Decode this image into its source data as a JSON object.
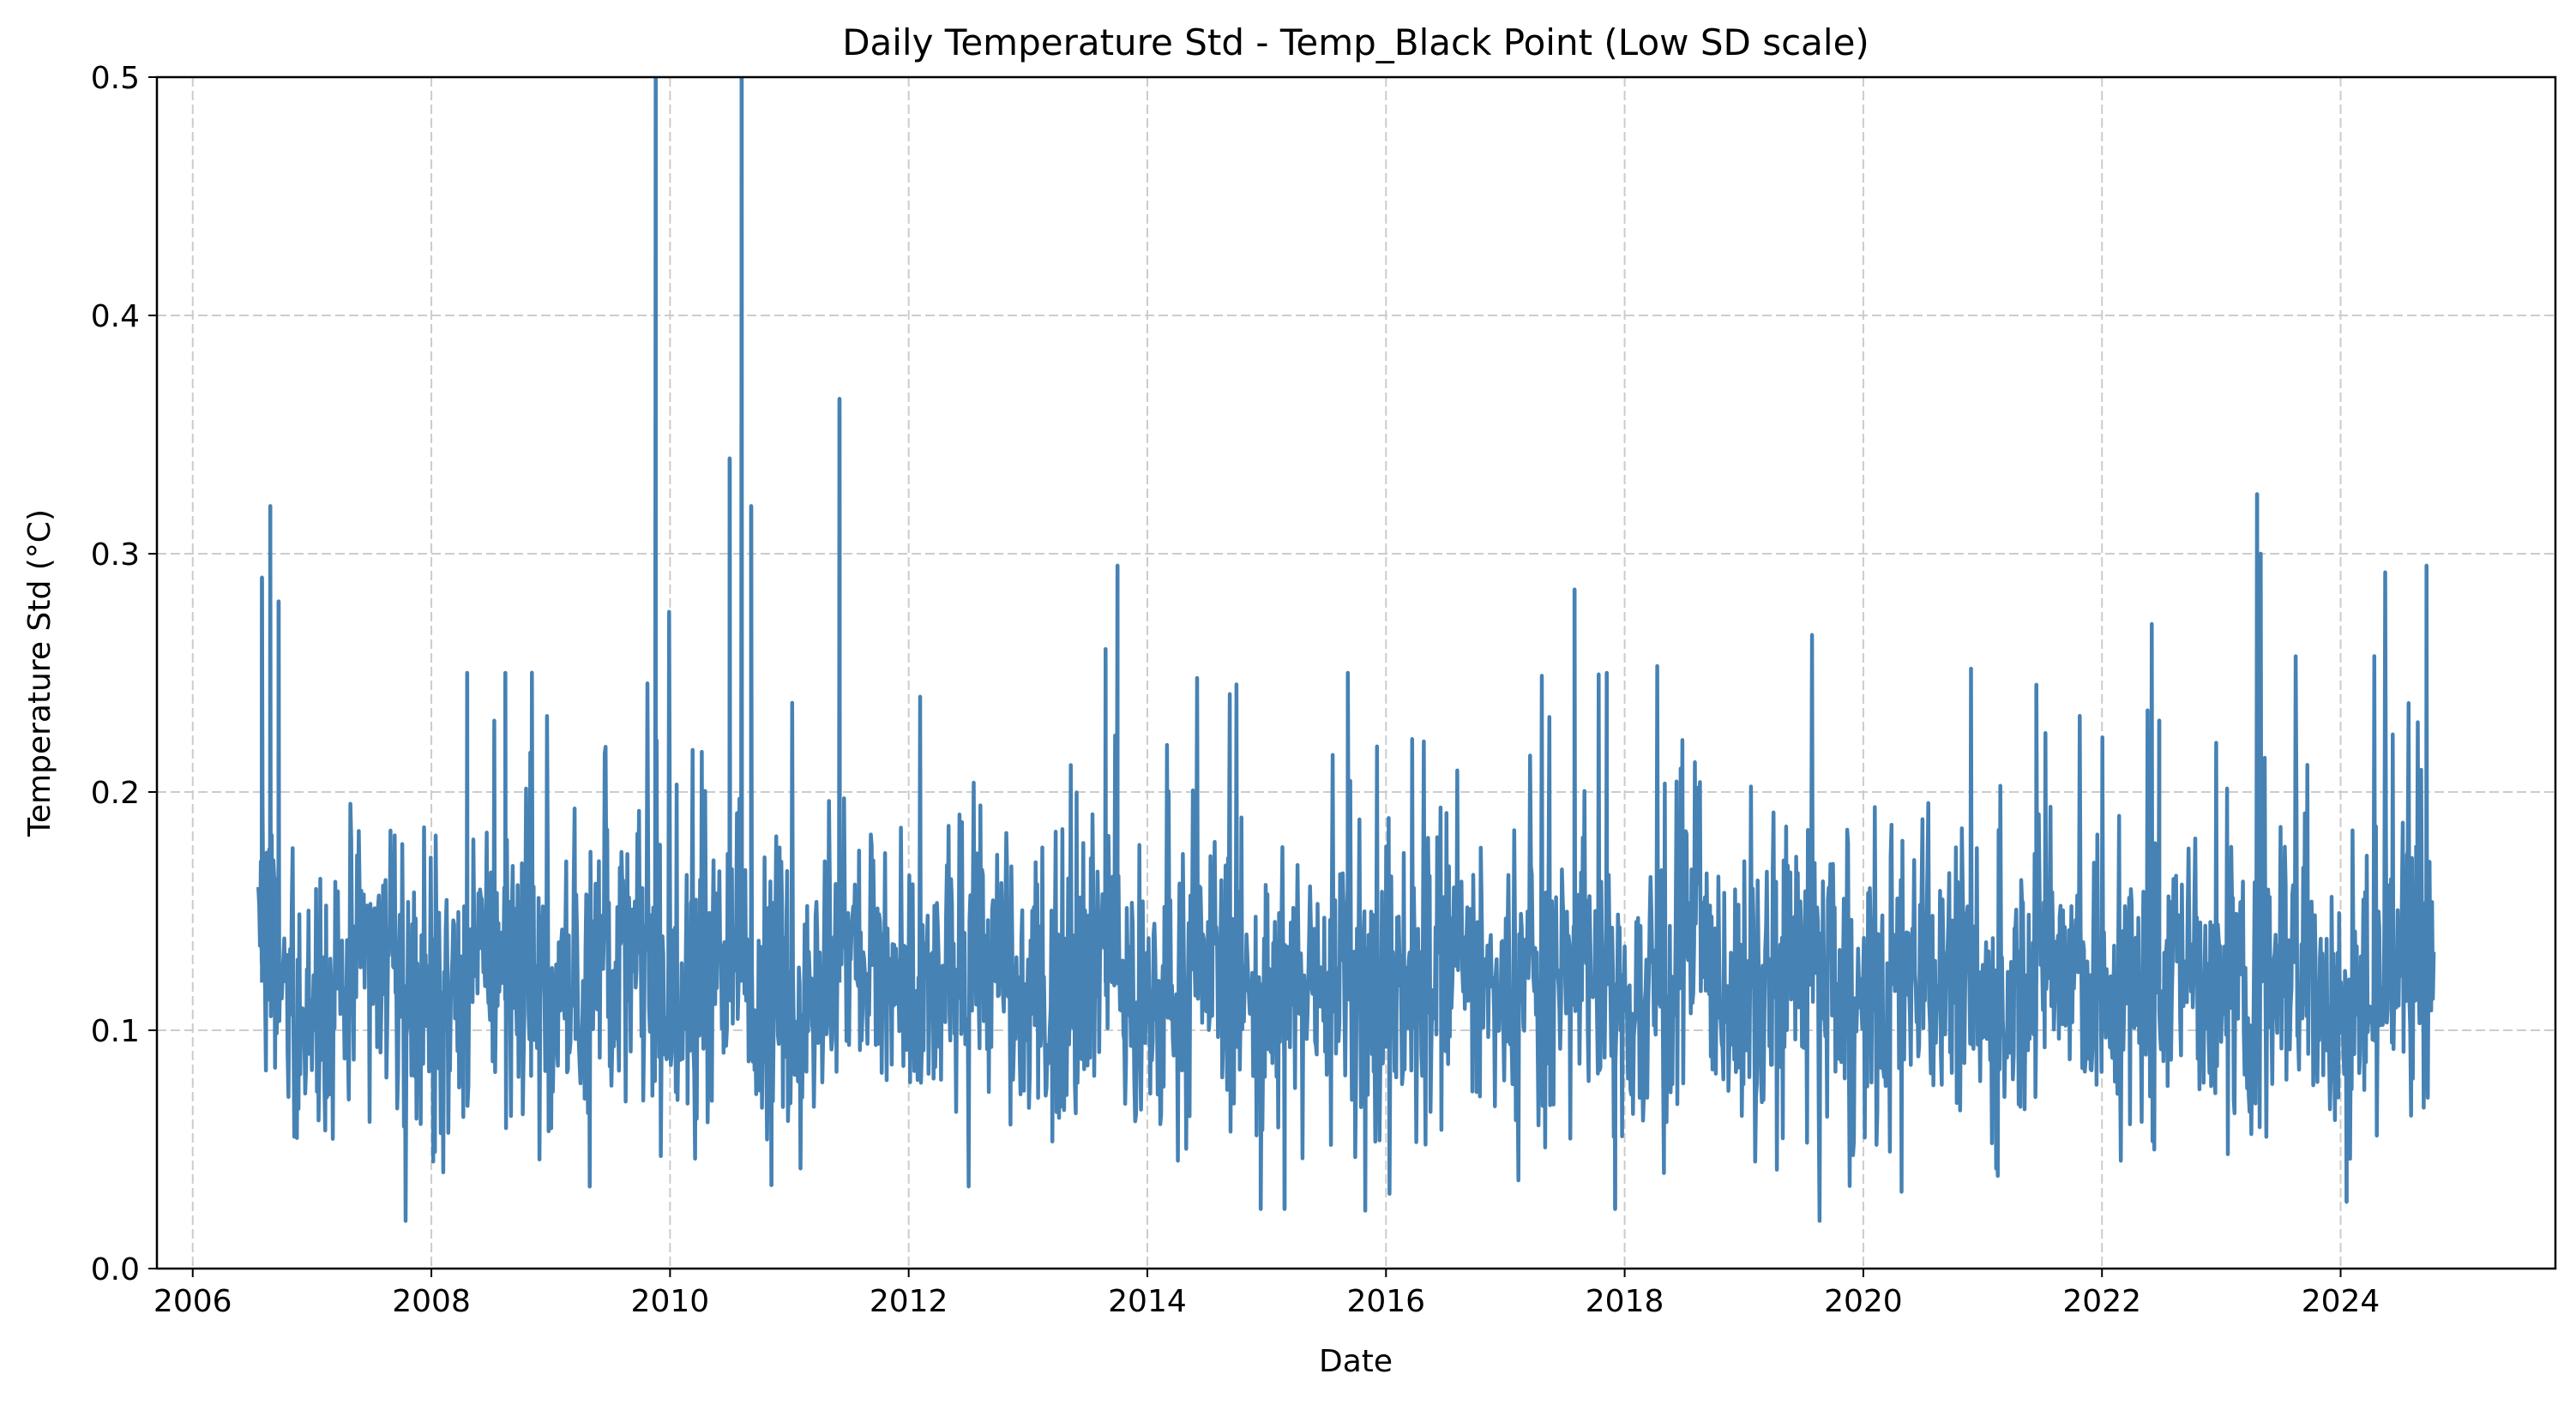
{
  "chart_data": {
    "type": "line",
    "title": "Daily Temperature Std - Temp_Black Point (Low SD scale)",
    "xlabel": "Date",
    "ylabel": "Temperature Std (°C)",
    "xlim": [
      2005.7,
      2025.8
    ],
    "ylim": [
      0.0,
      0.5
    ],
    "x_ticks": [
      "2006",
      "2008",
      "2010",
      "2012",
      "2014",
      "2016",
      "2018",
      "2020",
      "2022",
      "2024"
    ],
    "y_ticks": [
      "0.0",
      "0.1",
      "0.2",
      "0.3",
      "0.4",
      "0.5"
    ],
    "grid": true,
    "color": "#4682b4",
    "series": [
      {
        "x_start": 2006.55,
        "x_end": 2024.78,
        "base_mean": 0.12,
        "spread": 0.04,
        "notable_points": [
          {
            "x": 2006.58,
            "y": 0.29
          },
          {
            "x": 2006.65,
            "y": 0.32
          },
          {
            "x": 2006.72,
            "y": 0.28
          },
          {
            "x": 2008.3,
            "y": 0.25
          },
          {
            "x": 2008.62,
            "y": 0.25
          },
          {
            "x": 2009.88,
            "y": 0.5
          },
          {
            "x": 2010.5,
            "y": 0.34
          },
          {
            "x": 2010.6,
            "y": 0.5
          },
          {
            "x": 2010.68,
            "y": 0.32
          },
          {
            "x": 2011.42,
            "y": 0.365
          },
          {
            "x": 2013.65,
            "y": 0.26
          },
          {
            "x": 2013.75,
            "y": 0.295
          },
          {
            "x": 2015.68,
            "y": 0.25
          },
          {
            "x": 2017.58,
            "y": 0.285
          },
          {
            "x": 2017.85,
            "y": 0.25
          },
          {
            "x": 2021.45,
            "y": 0.245
          },
          {
            "x": 2022.48,
            "y": 0.23
          },
          {
            "x": 2023.3,
            "y": 0.325
          },
          {
            "x": 2023.33,
            "y": 0.3
          },
          {
            "x": 2024.72,
            "y": 0.295
          },
          {
            "x": 2010.85,
            "y": 0.035
          },
          {
            "x": 2014.95,
            "y": 0.025
          },
          {
            "x": 2015.15,
            "y": 0.025
          },
          {
            "x": 2017.92,
            "y": 0.025
          },
          {
            "x": 2024.05,
            "y": 0.028
          }
        ]
      }
    ]
  }
}
